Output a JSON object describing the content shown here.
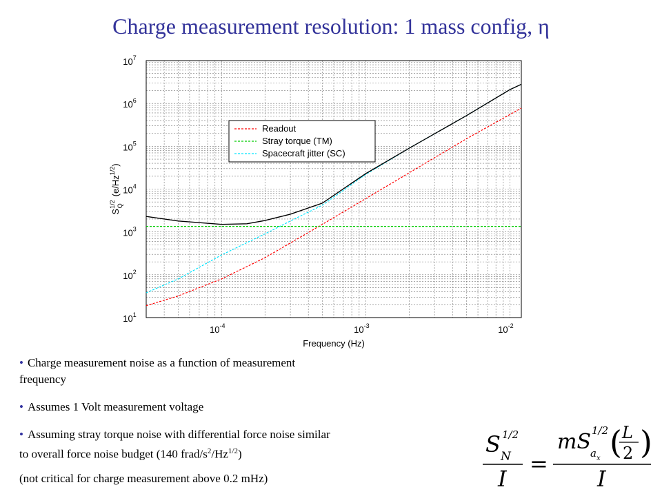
{
  "slide": {
    "title": "Charge measurement resolution: 1 mass config, η"
  },
  "bullets": {
    "b1_line1": "Charge measurement noise as a function of measurement",
    "b1_line2": "frequency",
    "b2": "Assumes 1 Volt measurement voltage",
    "b3_line1": "Assuming stray torque noise with differential force noise similar",
    "b3_line2_pre": "to overall force noise budget (140 frad/s",
    "b3_sup1": "2",
    "b3_mid": "/Hz",
    "b3_sup2": "1/2",
    "b3_post": ")",
    "note": "(not critical for charge measurement above 0.2 mHz)"
  },
  "formula": {
    "lhs_S": "S",
    "lhs_sup": "1/2",
    "lhs_sub": "N",
    "lhs_den": "I",
    "eq": "=",
    "rhs_m": "mS",
    "rhs_sup": "1/2",
    "rhs_sub": "a",
    "rhs_subsub": "x",
    "rhs_L": "L",
    "rhs_2": "2",
    "rhs_den": "I"
  },
  "chart_data": {
    "type": "line",
    "xlabel": "Frequency (Hz)",
    "ylabel_main": "S",
    "ylabel_sup": "1/2",
    "ylabel_sub": "Q",
    "ylabel_units_pre": "(e/Hz",
    "ylabel_units_sup": "1/2",
    "ylabel_units_post": ")",
    "x_scale": "log",
    "y_scale": "log",
    "xlim": [
      3e-05,
      0.012
    ],
    "ylim": [
      10,
      10000000
    ],
    "grid": true,
    "legend_position": "top-center",
    "x_ticks": [
      {
        "value": 0.0001,
        "base": "10",
        "exp": "-4"
      },
      {
        "value": 0.001,
        "base": "10",
        "exp": "-3"
      },
      {
        "value": 0.01,
        "base": "10",
        "exp": "-2"
      }
    ],
    "y_ticks": [
      {
        "value": 10,
        "base": "10",
        "exp": "1"
      },
      {
        "value": 100,
        "base": "10",
        "exp": "2"
      },
      {
        "value": 1000,
        "base": "10",
        "exp": "3"
      },
      {
        "value": 10000,
        "base": "10",
        "exp": "4"
      },
      {
        "value": 100000,
        "base": "10",
        "exp": "5"
      },
      {
        "value": 1000000,
        "base": "10",
        "exp": "6"
      },
      {
        "value": 10000000,
        "base": "10",
        "exp": "7"
      }
    ],
    "series": [
      {
        "name": "Readout",
        "color": "#ff0000",
        "dashed": true,
        "x": [
          3e-05,
          5e-05,
          0.0001,
          0.0002,
          0.0005,
          0.001,
          0.002,
          0.005,
          0.01,
          0.012
        ],
        "y": [
          19,
          32,
          80,
          250,
          1500,
          6000,
          24000,
          150000,
          550000,
          780000
        ]
      },
      {
        "name": "Stray torque (TM)",
        "color": "#00cc00",
        "dashed": true,
        "x": [
          3e-05,
          0.012
        ],
        "y": [
          1350,
          1350
        ]
      },
      {
        "name": "Spacecraft jitter (SC)",
        "color": "#00e5ff",
        "dashed": true,
        "x": [
          3e-05,
          5e-05,
          0.0001,
          0.0002,
          0.0003,
          0.0005,
          0.001,
          0.002,
          0.005,
          0.01,
          0.012
        ],
        "y": [
          38,
          80,
          290,
          900,
          1800,
          4200,
          22000,
          90000,
          520000,
          2100000,
          2800000
        ]
      },
      {
        "name": "",
        "color": "#000000",
        "dashed": false,
        "x": [
          3e-05,
          5e-05,
          0.0001,
          0.00015,
          0.0002,
          0.0003,
          0.0005,
          0.001,
          0.002,
          0.005,
          0.01,
          0.012
        ],
        "y": [
          2300,
          1800,
          1500,
          1550,
          1850,
          2600,
          4700,
          23000,
          90000,
          520000,
          2100000,
          2800000
        ]
      }
    ]
  }
}
